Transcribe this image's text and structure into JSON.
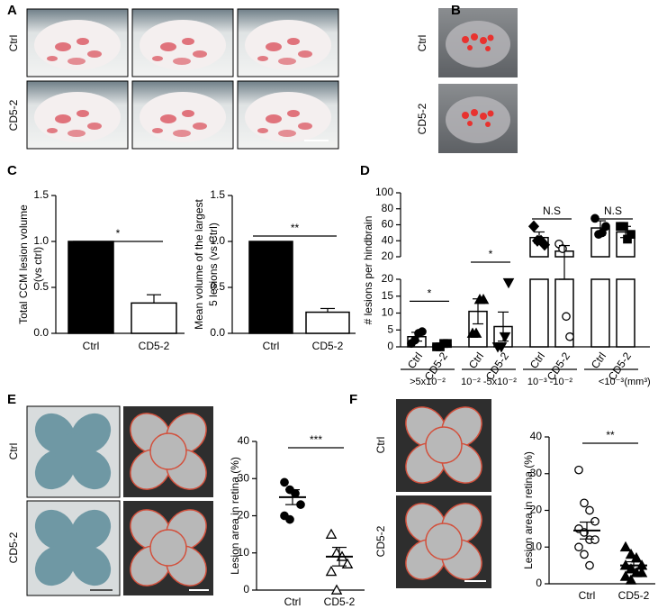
{
  "panel_labels": [
    "A",
    "B",
    "C",
    "D",
    "E",
    "F"
  ],
  "panel_a": {
    "rows": [
      "Ctrl",
      "CD5-2"
    ]
  },
  "panel_b": {
    "rows": [
      "Ctrl",
      "CD5-2"
    ]
  },
  "panel_e": {
    "rows": [
      "Ctrl",
      "CD5-2"
    ]
  },
  "panel_f": {
    "rows": [
      "Ctrl",
      "CD5-2"
    ]
  },
  "chart_data": [
    {
      "type": "bar",
      "ylabel": [
        "Total CCM lesion volume",
        "(vs ctrl)"
      ],
      "categories": [
        "Ctrl",
        "CD5-2"
      ],
      "values": [
        1.0,
        0.33
      ],
      "errors": [
        null,
        0.09
      ],
      "colors": [
        "#000000",
        "#ffffff"
      ],
      "ylim": [
        0,
        1.5
      ],
      "yticks": [
        {
          "value": 0,
          "label": "0.0"
        },
        {
          "value": 0.5,
          "label": "0.5"
        },
        {
          "value": 1,
          "label": "1.0"
        },
        {
          "value": 1.5,
          "label": "1.5"
        }
      ],
      "significance": "*"
    },
    {
      "type": "bar",
      "ylabel": [
        "Mean volume of the largest",
        "5 lesions (vs Ctrl)"
      ],
      "categories": [
        "Ctrl",
        "CD5-2"
      ],
      "values": [
        1.0,
        0.23
      ],
      "errors": [
        null,
        0.04
      ],
      "colors": [
        "#000000",
        "#ffffff"
      ],
      "ylim": [
        0,
        1.5
      ],
      "yticks": [
        {
          "value": 0,
          "label": "0.0"
        },
        {
          "value": 0.5,
          "label": "0.5"
        },
        {
          "value": 1,
          "label": "1.0"
        },
        {
          "value": 1.5,
          "label": "1.5"
        }
      ],
      "significance": "**"
    },
    {
      "type": "broken-bar",
      "ylabel": "# lesions per hindbrain",
      "categories": [
        "Ctrl",
        "CD5-2",
        "Ctrl",
        "CD5-2",
        "Ctrl",
        "CD5-2",
        "Ctrl",
        "CD5-2"
      ],
      "values": [
        3,
        0.5,
        10.5,
        6,
        44,
        27,
        56,
        51
      ],
      "errors": [
        1.3,
        0.5,
        3.7,
        4.3,
        7,
        7,
        9,
        7
      ],
      "points": [
        [
          1,
          2,
          4,
          4.5
        ],
        [
          0,
          0,
          1,
          1
        ],
        [
          4,
          4,
          14,
          14
        ],
        [
          0,
          0,
          3,
          19
        ],
        [
          58,
          40,
          40,
          35
        ],
        [
          36,
          30,
          9,
          3
        ],
        [
          68,
          48,
          50,
          58
        ],
        [
          58,
          58,
          42,
          48
        ]
      ],
      "markers": [
        "circle",
        "square",
        "triangle",
        "triangle-down",
        "diamond",
        "circle-open",
        "circle",
        "square"
      ],
      "color": "#ffffff",
      "ylim_lower": [
        0,
        20
      ],
      "yticks_lower": [
        0,
        5,
        10,
        15,
        20
      ],
      "ylim_upper": [
        20,
        100
      ],
      "yticks_upper": [
        20,
        40,
        60,
        80,
        100
      ],
      "groups": [
        ">5x10⁻²",
        "10⁻² -5x10⁻²",
        "10⁻³ -10⁻²",
        "<10⁻³"
      ],
      "unit": "(mm³)",
      "significance": [
        "*",
        "*",
        "N.S",
        "N.S"
      ]
    },
    {
      "type": "dot",
      "ylabel": "Lesion area in retina (%)",
      "categories": [
        "Ctrl",
        "CD5-2"
      ],
      "points": [
        [
          29,
          27,
          26,
          23,
          20,
          19
        ],
        [
          15,
          10,
          9,
          7,
          5,
          0
        ]
      ],
      "markers": [
        "circle",
        "triangle-open"
      ],
      "values": [
        25,
        9
      ],
      "errors": [
        2,
        2.5
      ],
      "ylim": [
        0,
        40
      ],
      "yticks": [
        0,
        10,
        20,
        30,
        40
      ],
      "significance": "***"
    },
    {
      "type": "dot",
      "ylabel": "Lesion area in retina (%)",
      "categories": [
        "Ctrl",
        "CD5-2"
      ],
      "points": [
        [
          31,
          22,
          20,
          17,
          15,
          14,
          12,
          12,
          10,
          8,
          5
        ],
        [
          10,
          8,
          7,
          5,
          5,
          4,
          3,
          3,
          2,
          1
        ]
      ],
      "markers": [
        "circle-open",
        "triangle"
      ],
      "values": [
        14.5,
        5
      ],
      "errors": [
        2.3,
        1
      ],
      "ylim": [
        0,
        40
      ],
      "yticks": [
        0,
        10,
        20,
        30,
        40
      ],
      "significance": "**"
    }
  ]
}
